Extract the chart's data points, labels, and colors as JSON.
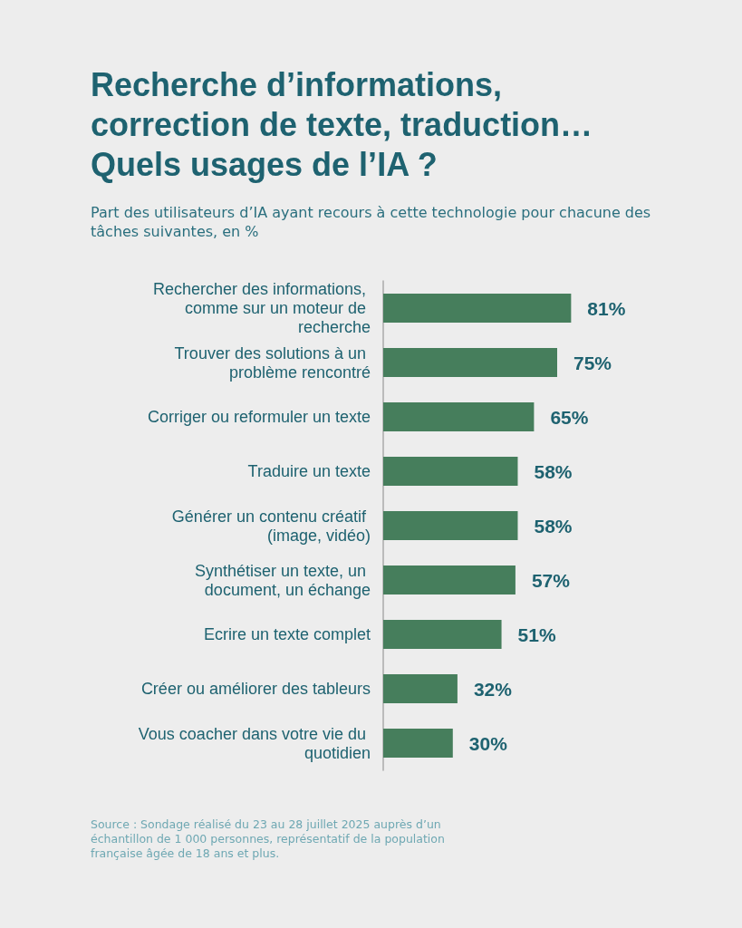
{
  "chart_data": {
    "type": "bar",
    "orientation": "horizontal",
    "title": "Recherche d’informations, correction de texte, traduction… Quels usages de l’IA ?",
    "subtitle": "Part des utilisateurs d’IA ayant recours à cette technologie pour chacune des tâches suivantes, en %",
    "categories": [
      "Rechercher des informations, comme sur un moteur de recherche",
      "Trouver des solutions à un problème rencontré",
      "Corriger ou reformuler un texte",
      "Traduire un texte",
      "Générer un contenu créatif (image, vidéo)",
      "Synthétiser un texte, un document, un échange",
      "Ecrire un texte complet",
      "Créer ou améliorer des tableurs",
      "Vous coacher dans votre vie du quotidien"
    ],
    "values": [
      81,
      75,
      65,
      58,
      58,
      57,
      51,
      32,
      30
    ],
    "value_labels": [
      "81%",
      "75%",
      "65%",
      "58%",
      "58%",
      "57%",
      "51%",
      "32%",
      "30%"
    ],
    "color": "#467e5c",
    "grid": false,
    "annotations": [
      "Source : Sondage réalisé du 23 au 28 juillet 2025 auprès d’un échantillon de 1 000 personnes, représentatif de la population française âgée de 18 ans et plus."
    ]
  }
}
